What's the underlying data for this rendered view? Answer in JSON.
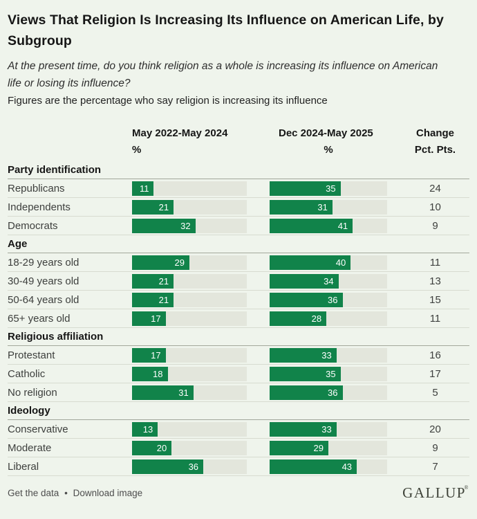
{
  "header": {
    "title": "Views That Religion Is Increasing Its Influence on American Life, by Subgroup",
    "question": "At the present time, do you think religion as a whole is increasing its influence on American life or losing its influence?",
    "note": "Figures are the percentage who say religion is increasing its influence"
  },
  "columns": {
    "col1_label": "May 2022-May 2024",
    "col1_unit": "%",
    "col2_label": "Dec 2024-May 2025",
    "col2_unit": "%",
    "col3_label": "Change",
    "col3_unit": "Pct. Pts."
  },
  "chart_data": {
    "type": "bar",
    "title": "Views That Religion Is Increasing Its Influence on American Life, by Subgroup",
    "subtitle": "At the present time, do you think religion as a whole is increasing its influence on American life or losing its influence?",
    "note": "Figures are the percentage who say religion is increasing its influence",
    "series_names": [
      "May 2022-May 2024",
      "Dec 2024-May 2025",
      "Change"
    ],
    "value_unit": "%",
    "change_unit": "Pct. Pts.",
    "xlim": [
      0,
      58
    ],
    "grid": false,
    "groups": [
      {
        "label": "Party identification",
        "rows": [
          {
            "label": "Republicans",
            "v1": 11,
            "v2": 35,
            "change": 24
          },
          {
            "label": "Independents",
            "v1": 21,
            "v2": 31,
            "change": 10
          },
          {
            "label": "Democrats",
            "v1": 32,
            "v2": 41,
            "change": 9
          }
        ]
      },
      {
        "label": "Age",
        "rows": [
          {
            "label": "18-29 years old",
            "v1": 29,
            "v2": 40,
            "change": 11
          },
          {
            "label": "30-49 years old",
            "v1": 21,
            "v2": 34,
            "change": 13
          },
          {
            "label": "50-64 years old",
            "v1": 21,
            "v2": 36,
            "change": 15
          },
          {
            "label": "65+ years old",
            "v1": 17,
            "v2": 28,
            "change": 11
          }
        ]
      },
      {
        "label": "Religious affiliation",
        "rows": [
          {
            "label": "Protestant",
            "v1": 17,
            "v2": 33,
            "change": 16
          },
          {
            "label": "Catholic",
            "v1": 18,
            "v2": 35,
            "change": 17
          },
          {
            "label": "No religion",
            "v1": 31,
            "v2": 36,
            "change": 5
          }
        ]
      },
      {
        "label": "Ideology",
        "rows": [
          {
            "label": "Conservative",
            "v1": 13,
            "v2": 33,
            "change": 20
          },
          {
            "label": "Moderate",
            "v1": 20,
            "v2": 29,
            "change": 9
          },
          {
            "label": "Liberal",
            "v1": 36,
            "v2": 43,
            "change": 7
          }
        ]
      }
    ]
  },
  "colors": {
    "bar_green": "#11834a",
    "track_gray": "#e3e6dc",
    "background": "#eff4ec"
  },
  "footer": {
    "link1": "Get the data",
    "separator": "•",
    "link2": "Download image",
    "logo": "GALLUP",
    "logo_mark": "®"
  }
}
